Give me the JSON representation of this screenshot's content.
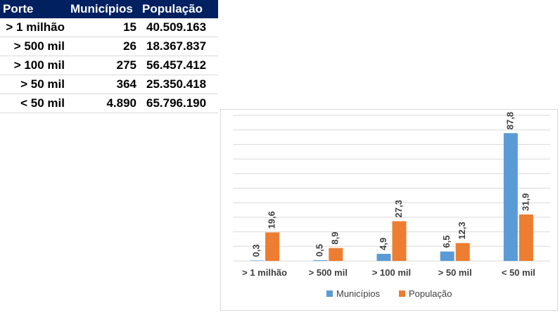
{
  "table": {
    "headers": [
      "Porte",
      "Municípios",
      "População"
    ],
    "rows": [
      {
        "porte": "> 1 milhão",
        "municipios": "15",
        "populacao": "40.509.163"
      },
      {
        "porte": "> 500 mil",
        "municipios": "26",
        "populacao": "18.367.837"
      },
      {
        "porte": "> 100 mil",
        "municipios": "275",
        "populacao": "56.457.412"
      },
      {
        "porte": "> 50 mil",
        "municipios": "364",
        "populacao": "25.350.418"
      },
      {
        "porte": "< 50 mil",
        "municipios": "4.890",
        "populacao": "65.796.190"
      }
    ]
  },
  "colors": {
    "header_bg": "#002060",
    "municipios": "#5B9BD5",
    "populacao": "#ED7D31",
    "gridline": "#d9d9d9"
  },
  "chart_data": {
    "type": "bar",
    "categories": [
      "> 1 milhão",
      "> 500 mil",
      "> 100 mil",
      "> 50 mil",
      "< 50 mil"
    ],
    "series": [
      {
        "name": "Municípios",
        "values": [
          0.3,
          0.5,
          4.9,
          6.5,
          87.8
        ],
        "labels": [
          "0,3",
          "0,5",
          "4,9",
          "6,5",
          "87,8"
        ]
      },
      {
        "name": "População",
        "values": [
          19.6,
          8.9,
          27.3,
          12.3,
          31.9
        ],
        "labels": [
          "19,6",
          "8,9",
          "27,3",
          "12,3",
          "31,9"
        ]
      }
    ],
    "title": "",
    "xlabel": "",
    "ylabel": "",
    "ylim": [
      0,
      100
    ],
    "grid": true,
    "legend": "bottom"
  }
}
